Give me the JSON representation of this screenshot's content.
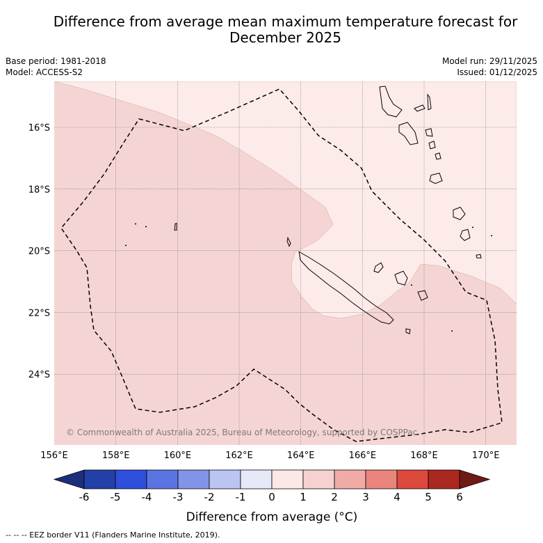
{
  "title_line1": "Difference from average mean maximum temperature forecast for",
  "title_line2": "December 2025",
  "base_period": "Base period: 1981-2018",
  "model": "Model: ACCESS-S2",
  "model_run": "Model run: 29/11/2025",
  "issued": "Issued: 01/12/2025",
  "copyright": "© Commonwealth of Australia 2025, Bureau of Meteorology, supported by COSPPac",
  "lat_labels": [
    "16°S",
    "18°S",
    "20°S",
    "22°S",
    "24°S"
  ],
  "lon_labels": [
    "156°E",
    "158°E",
    "160°E",
    "162°E",
    "164°E",
    "166°E",
    "168°E",
    "170°E"
  ],
  "colorbar": {
    "ticks": [
      "-6",
      "-5",
      "-4",
      "-3",
      "-2",
      "-1",
      "0",
      "1",
      "2",
      "3",
      "4",
      "5",
      "6"
    ],
    "colors": [
      "#2340a8",
      "#2e4fdc",
      "#5a74e2",
      "#8394e8",
      "#bcc4f2",
      "#e6e9f8",
      "#fce8e6",
      "#f5d2d0",
      "#f0aba6",
      "#e9857c",
      "#dc4a3d",
      "#ab2821"
    ],
    "under_color": "#1c2f7a",
    "over_color": "#701a15",
    "label": "Difference from average (°C)"
  },
  "map_colors": {
    "band_0_1": "#fcebe9",
    "band_1_2": "#f5d5d3",
    "grid": "#777777"
  },
  "legend_text": "--  --  -- EEZ border V11 (Flanders Marine Institute, 2019)."
}
